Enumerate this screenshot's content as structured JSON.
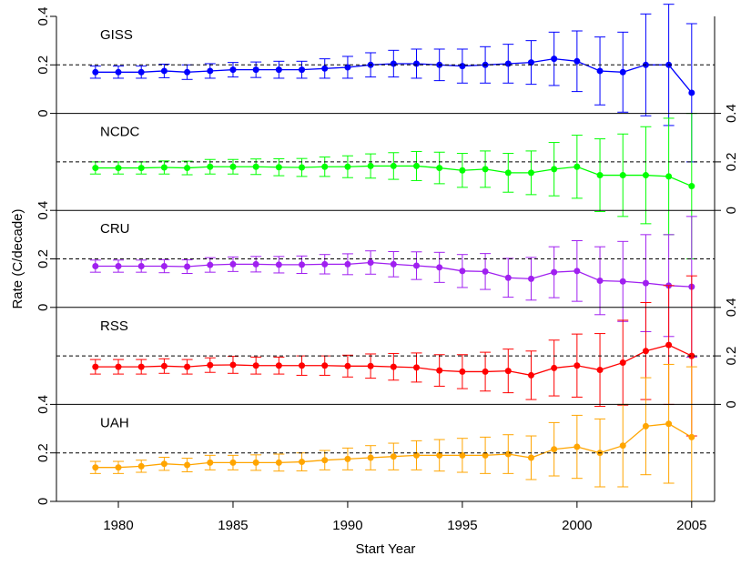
{
  "chart_data": [
    {
      "type": "line",
      "label": "GISS",
      "color": "#0000ff",
      "axis_side": "left",
      "reference_line": 0.2,
      "xlim": [
        1977.3,
        2006.0
      ],
      "ylim": [
        0,
        0.4
      ],
      "yticks": [
        0,
        0.2,
        0.4
      ],
      "x": [
        1979,
        1980,
        1981,
        1982,
        1983,
        1984,
        1985,
        1986,
        1987,
        1988,
        1989,
        1990,
        1991,
        1992,
        1993,
        1994,
        1995,
        1996,
        1997,
        1998,
        1999,
        2000,
        2001,
        2002,
        2003,
        2004,
        2005
      ],
      "values": [
        0.17,
        0.17,
        0.17,
        0.175,
        0.17,
        0.175,
        0.18,
        0.18,
        0.18,
        0.18,
        0.185,
        0.19,
        0.2,
        0.205,
        0.205,
        0.2,
        0.195,
        0.2,
        0.205,
        0.21,
        0.225,
        0.215,
        0.175,
        0.17,
        0.2,
        0.2,
        0.085
      ],
      "errors": [
        0.025,
        0.025,
        0.025,
        0.028,
        0.03,
        0.03,
        0.03,
        0.032,
        0.035,
        0.035,
        0.04,
        0.045,
        0.05,
        0.055,
        0.06,
        0.065,
        0.07,
        0.075,
        0.08,
        0.09,
        0.11,
        0.125,
        0.14,
        0.165,
        0.21,
        0.25,
        0.285
      ]
    },
    {
      "type": "line",
      "label": "NCDC",
      "color": "#00ff00",
      "axis_side": "right",
      "reference_line": 0.2,
      "xlim": [
        1977.3,
        2006.0
      ],
      "ylim": [
        0,
        0.4
      ],
      "yticks": [
        0,
        0.2,
        0.4
      ],
      "x": [
        1979,
        1980,
        1981,
        1982,
        1983,
        1984,
        1985,
        1986,
        1987,
        1988,
        1989,
        1990,
        1991,
        1992,
        1993,
        1994,
        1995,
        1996,
        1997,
        1998,
        1999,
        2000,
        2001,
        2002,
        2003,
        2004,
        2005
      ],
      "values": [
        0.175,
        0.175,
        0.175,
        0.177,
        0.175,
        0.18,
        0.18,
        0.18,
        0.178,
        0.177,
        0.18,
        0.18,
        0.183,
        0.183,
        0.183,
        0.175,
        0.165,
        0.17,
        0.155,
        0.155,
        0.17,
        0.18,
        0.145,
        0.145,
        0.145,
        0.14,
        0.1
      ],
      "errors": [
        0.025,
        0.025,
        0.025,
        0.027,
        0.028,
        0.03,
        0.03,
        0.032,
        0.035,
        0.037,
        0.04,
        0.045,
        0.05,
        0.055,
        0.06,
        0.065,
        0.07,
        0.075,
        0.08,
        0.09,
        0.11,
        0.13,
        0.15,
        0.17,
        0.2,
        0.24,
        0.3
      ]
    },
    {
      "type": "line",
      "label": "CRU",
      "color": "#a020f0",
      "axis_side": "left",
      "reference_line": 0.2,
      "ylabel": "Rate (C/decade)",
      "xlim": [
        1977.3,
        2006.0
      ],
      "ylim": [
        0,
        0.4
      ],
      "yticks": [
        0,
        0.2,
        0.4
      ],
      "x": [
        1979,
        1980,
        1981,
        1982,
        1983,
        1984,
        1985,
        1986,
        1987,
        1988,
        1989,
        1990,
        1991,
        1992,
        1993,
        1994,
        1995,
        1996,
        1997,
        1998,
        1999,
        2000,
        2001,
        2002,
        2003,
        2004,
        2005
      ],
      "values": [
        0.17,
        0.17,
        0.17,
        0.17,
        0.168,
        0.175,
        0.178,
        0.178,
        0.176,
        0.176,
        0.178,
        0.178,
        0.185,
        0.178,
        0.172,
        0.165,
        0.15,
        0.148,
        0.122,
        0.118,
        0.145,
        0.15,
        0.11,
        0.107,
        0.1,
        0.09,
        0.085
      ],
      "errors": [
        0.025,
        0.025,
        0.025,
        0.027,
        0.028,
        0.03,
        0.03,
        0.032,
        0.034,
        0.036,
        0.04,
        0.043,
        0.048,
        0.052,
        0.057,
        0.062,
        0.068,
        0.074,
        0.08,
        0.088,
        0.105,
        0.125,
        0.14,
        0.165,
        0.2,
        0.21,
        0.29
      ]
    },
    {
      "type": "line",
      "label": "RSS",
      "color": "#ff0000",
      "axis_side": "right",
      "reference_line": 0.2,
      "xlim": [
        1977.3,
        2006.0
      ],
      "ylim": [
        0,
        0.4
      ],
      "yticks": [
        0,
        0.2,
        0.4
      ],
      "x": [
        1979,
        1980,
        1981,
        1982,
        1983,
        1984,
        1985,
        1986,
        1987,
        1988,
        1989,
        1990,
        1991,
        1992,
        1993,
        1994,
        1995,
        1996,
        1997,
        1998,
        1999,
        2000,
        2001,
        2002,
        2003,
        2004,
        2005
      ],
      "values": [
        0.155,
        0.155,
        0.155,
        0.158,
        0.155,
        0.162,
        0.163,
        0.16,
        0.16,
        0.16,
        0.16,
        0.158,
        0.158,
        0.155,
        0.152,
        0.14,
        0.135,
        0.135,
        0.138,
        0.12,
        0.15,
        0.16,
        0.142,
        0.172,
        0.22,
        0.245,
        0.2
      ],
      "errors": [
        0.03,
        0.03,
        0.03,
        0.03,
        0.03,
        0.03,
        0.035,
        0.035,
        0.035,
        0.04,
        0.04,
        0.045,
        0.05,
        0.055,
        0.06,
        0.065,
        0.07,
        0.08,
        0.09,
        0.1,
        0.115,
        0.13,
        0.15,
        0.175,
        0.2,
        0.245,
        0.33
      ]
    },
    {
      "type": "line",
      "label": "UAH",
      "color": "#ffa500",
      "axis_side": "left",
      "reference_line": 0.2,
      "xlabel": "Start Year",
      "xlim": [
        1977.3,
        2006.0
      ],
      "xticks": [
        1980,
        1985,
        1990,
        1995,
        2000,
        2005
      ],
      "ylim": [
        0,
        0.4
      ],
      "yticks": [
        0,
        0.2,
        0.4
      ],
      "x": [
        1979,
        1980,
        1981,
        1982,
        1983,
        1984,
        1985,
        1986,
        1987,
        1988,
        1989,
        1990,
        1991,
        1992,
        1993,
        1994,
        1995,
        1996,
        1997,
        1998,
        1999,
        2000,
        2001,
        2002,
        2003,
        2004,
        2005
      ],
      "values": [
        0.14,
        0.14,
        0.145,
        0.155,
        0.15,
        0.16,
        0.16,
        0.16,
        0.16,
        0.163,
        0.17,
        0.175,
        0.18,
        0.185,
        0.19,
        0.19,
        0.19,
        0.19,
        0.195,
        0.18,
        0.215,
        0.225,
        0.2,
        0.23,
        0.31,
        0.32,
        0.265
      ],
      "errors": [
        0.025,
        0.025,
        0.025,
        0.027,
        0.028,
        0.03,
        0.03,
        0.032,
        0.035,
        0.037,
        0.04,
        0.045,
        0.05,
        0.055,
        0.06,
        0.065,
        0.07,
        0.075,
        0.08,
        0.09,
        0.11,
        0.13,
        0.14,
        0.17,
        0.2,
        0.245,
        0.29
      ]
    }
  ]
}
